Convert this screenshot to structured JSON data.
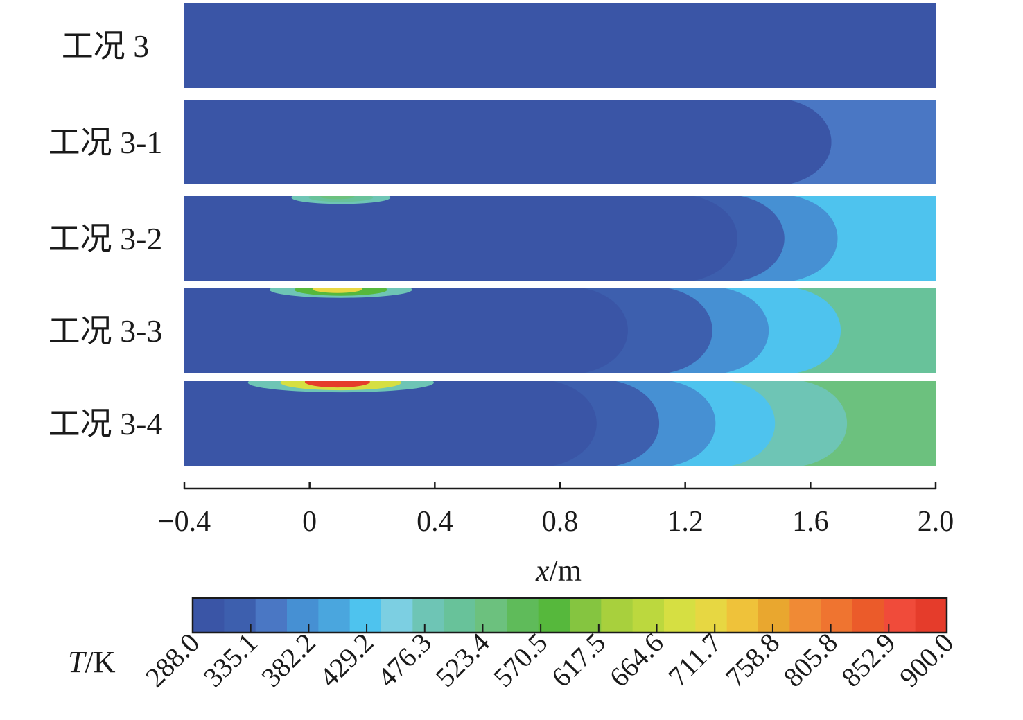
{
  "chart_data": {
    "type": "heatmap",
    "description_kind": "temperature contour panels",
    "x_axis": {
      "label_var": "x",
      "label_unit": "/m",
      "range": [
        -0.4,
        2.0
      ],
      "ticks": [
        -0.4,
        0,
        0.4,
        0.8,
        1.2,
        1.6,
        2.0
      ],
      "tick_labels": [
        "−0.4",
        "0",
        "0.4",
        "0.8",
        "1.2",
        "1.6",
        "2.0"
      ]
    },
    "rows": [
      {
        "label": "工况 3",
        "fronts": [],
        "tip_max_K": 335.1,
        "outlet_T_K": 300
      },
      {
        "label": "工况 3-1",
        "fronts": [
          {
            "x": 1.7,
            "T": 335.1
          }
        ],
        "tip_max_K": 335.1,
        "outlet_T_K": 360
      },
      {
        "label": "工况 3-2",
        "fronts": [
          {
            "x": 1.4,
            "T": 335.1
          },
          {
            "x": 1.55,
            "T": 382.2
          },
          {
            "x": 1.72,
            "T": 429.2
          }
        ],
        "tip_max_K": 523.4,
        "outlet_T_K": 430
      },
      {
        "label": "工况 3-3",
        "fronts": [
          {
            "x": 1.05,
            "T": 335.1
          },
          {
            "x": 1.32,
            "T": 382.2
          },
          {
            "x": 1.5,
            "T": 429.2
          },
          {
            "x": 1.73,
            "T": 476.3
          }
        ],
        "tip_max_K": 711.7,
        "outlet_T_K": 500
      },
      {
        "label": "工况 3-4",
        "fronts": [
          {
            "x": 0.95,
            "T": 335.1
          },
          {
            "x": 1.15,
            "T": 382.2
          },
          {
            "x": 1.33,
            "T": 429.2
          },
          {
            "x": 1.52,
            "T": 476.3
          },
          {
            "x": 1.75,
            "T": 523.4
          }
        ],
        "tip_max_K": 900.0,
        "outlet_T_K": 540
      }
    ],
    "colorbar": {
      "label_var": "T",
      "label_unit": "/K",
      "min": 288.0,
      "max": 900.0,
      "levels": [
        "288.0",
        "335.1",
        "382.2",
        "429.2",
        "476.3",
        "523.4",
        "570.5",
        "617.5",
        "664.6",
        "711.7",
        "758.8",
        "805.8",
        "852.9",
        "900.0"
      ],
      "colors": [
        "#3a55a6",
        "#3d5fae",
        "#4a77c4",
        "#4690d3",
        "#4aa6de",
        "#4ec3ee",
        "#7ccfe2",
        "#6ec5b5",
        "#68c29a",
        "#6cc17e",
        "#5fbb5a",
        "#56b83c",
        "#85c540",
        "#a8d03d",
        "#bcd83e",
        "#d6df42",
        "#e7d742",
        "#efc23a",
        "#e9a72f",
        "#f08a35",
        "#ef7430",
        "#eb5b2a",
        "#f04b3a",
        "#e53c2b"
      ]
    }
  }
}
